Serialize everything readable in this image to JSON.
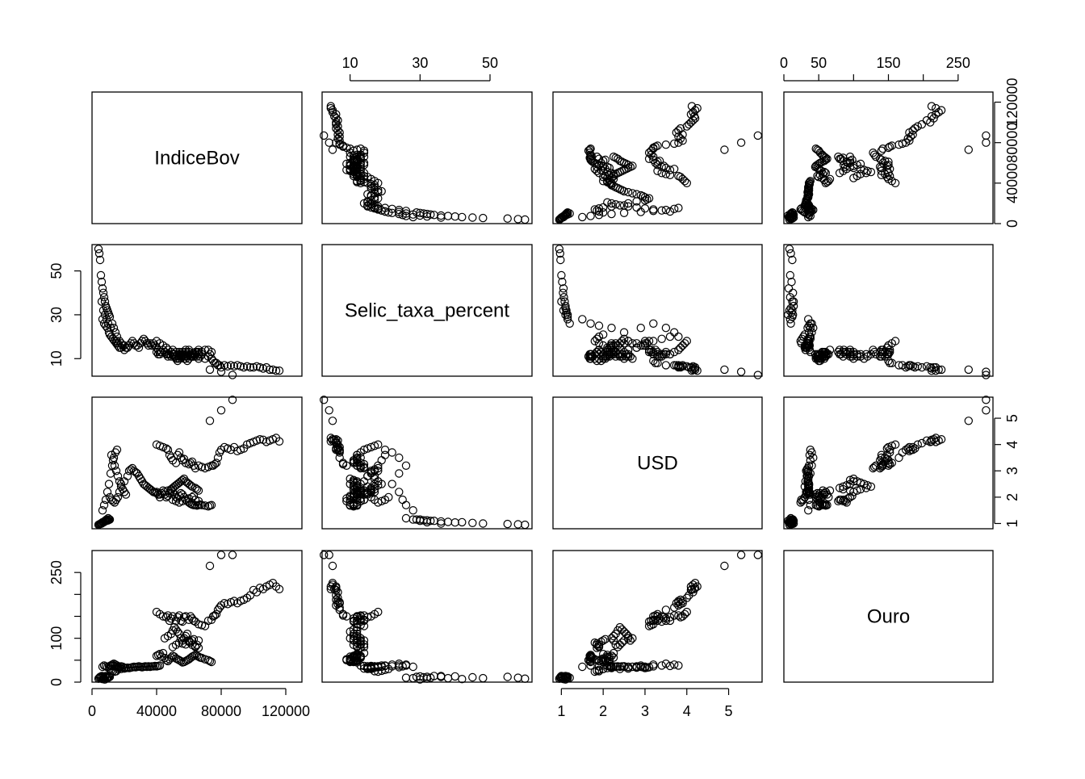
{
  "chart_data": {
    "type": "scatter",
    "kind": "scatterplot-matrix",
    "variables": [
      {
        "name": "IndiceBov",
        "range": [
          0,
          130000
        ],
        "ticks": [
          0,
          40000,
          80000,
          120000
        ],
        "tick_labels": [
          "0",
          "40000",
          "80000",
          "120000"
        ]
      },
      {
        "name": "Selic_taxa_percent",
        "range": [
          2,
          62
        ],
        "ticks": [
          10,
          30,
          50
        ],
        "tick_labels": [
          "10",
          "30",
          "50"
        ]
      },
      {
        "name": "USD",
        "range": [
          0.8,
          5.8
        ],
        "ticks": [
          1,
          2,
          3,
          4,
          5
        ],
        "tick_labels": [
          "1",
          "2",
          "3",
          "4",
          "5"
        ]
      },
      {
        "name": "Ouro",
        "range": [
          0,
          300
        ],
        "ticks": [
          0,
          100,
          250
        ],
        "minor_ticks": [
          50,
          150,
          200
        ],
        "tick_labels": [
          "0",
          "100",
          "250"
        ],
        "top_tick_labels": [
          "0",
          "50",
          "150",
          "250"
        ]
      }
    ],
    "axis_placement": {
      "IndiceBov": {
        "bottom": true,
        "right": true
      },
      "Selic_taxa_percent": {
        "top": true,
        "left": true
      },
      "USD": {
        "bottom": true,
        "right": true
      },
      "Ouro": {
        "top": true,
        "left": true
      }
    },
    "observations": [
      [
        4000,
        60,
        0.95,
        8
      ],
      [
        4500,
        58,
        0.97,
        10
      ],
      [
        5000,
        55,
        0.98,
        12
      ],
      [
        5500,
        48,
        1.0,
        9
      ],
      [
        6000,
        45,
        1.02,
        11
      ],
      [
        6500,
        42,
        1.05,
        7
      ],
      [
        7000,
        40,
        1.04,
        13
      ],
      [
        7500,
        38,
        1.06,
        9
      ],
      [
        8000,
        36,
        1.08,
        12
      ],
      [
        8500,
        34,
        1.1,
        14
      ],
      [
        9000,
        33,
        1.1,
        10
      ],
      [
        9500,
        32,
        1.12,
        12
      ],
      [
        10000,
        31,
        1.12,
        11
      ],
      [
        10500,
        30,
        1.15,
        13
      ],
      [
        11000,
        29,
        1.15,
        12
      ],
      [
        6000,
        36,
        1.0,
        14
      ],
      [
        7000,
        32,
        1.05,
        8
      ],
      [
        8000,
        30,
        1.1,
        6
      ],
      [
        9000,
        28,
        1.15,
        9
      ],
      [
        10000,
        26,
        1.2,
        10
      ],
      [
        6500,
        28,
        1.5,
        35
      ],
      [
        7500,
        26,
        1.7,
        38
      ],
      [
        8500,
        25,
        1.9,
        36
      ],
      [
        9500,
        24,
        2.2,
        34
      ],
      [
        10500,
        22,
        2.5,
        36
      ],
      [
        11500,
        24,
        2.9,
        38
      ],
      [
        12500,
        26,
        3.2,
        40
      ],
      [
        13500,
        24,
        3.5,
        42
      ],
      [
        14500,
        22,
        3.7,
        40
      ],
      [
        15500,
        20,
        3.8,
        38
      ],
      [
        12000,
        20,
        3.6,
        37
      ],
      [
        13000,
        19,
        3.4,
        38
      ],
      [
        14000,
        18,
        3.2,
        36
      ],
      [
        15000,
        18,
        3.0,
        35
      ],
      [
        16000,
        17,
        2.8,
        34
      ],
      [
        17000,
        18,
        2.6,
        35
      ],
      [
        18000,
        17,
        2.5,
        36
      ],
      [
        19000,
        16,
        2.3,
        35
      ],
      [
        20000,
        16,
        2.2,
        33
      ],
      [
        21000,
        15,
        2.1,
        32
      ],
      [
        11000,
        21,
        2.0,
        30
      ],
      [
        12000,
        20,
        1.9,
        28
      ],
      [
        13000,
        19,
        1.85,
        26
      ],
      [
        14000,
        18,
        1.8,
        24
      ],
      [
        15000,
        17,
        1.9,
        25
      ],
      [
        16000,
        16,
        2.0,
        30
      ],
      [
        17000,
        15,
        2.2,
        32
      ],
      [
        18000,
        15,
        2.4,
        30
      ],
      [
        20000,
        14,
        2.6,
        31
      ],
      [
        22000,
        15,
        2.8,
        33
      ],
      [
        23000,
        16,
        3.0,
        32
      ],
      [
        24000,
        17,
        3.05,
        33
      ],
      [
        25000,
        18,
        3.1,
        34
      ],
      [
        26000,
        17,
        3.0,
        35
      ],
      [
        27000,
        16,
        2.95,
        34
      ],
      [
        28000,
        16,
        2.9,
        35
      ],
      [
        29000,
        15,
        2.8,
        36
      ],
      [
        30000,
        17,
        2.7,
        35
      ],
      [
        31000,
        18,
        2.6,
        34
      ],
      [
        32000,
        19,
        2.5,
        35
      ],
      [
        33000,
        18,
        2.45,
        36
      ],
      [
        34000,
        17,
        2.4,
        35
      ],
      [
        35000,
        16,
        2.35,
        36
      ],
      [
        36000,
        17,
        2.3,
        35
      ],
      [
        37000,
        16,
        2.25,
        36
      ],
      [
        38000,
        17,
        2.2,
        36
      ],
      [
        39000,
        16,
        2.18,
        37
      ],
      [
        40000,
        15,
        2.15,
        36
      ],
      [
        41000,
        14,
        2.1,
        37
      ],
      [
        42000,
        13,
        2.1,
        38
      ],
      [
        40000,
        13,
        2.2,
        60
      ],
      [
        41000,
        12,
        2.1,
        62
      ],
      [
        42000,
        12,
        2.0,
        64
      ],
      [
        43000,
        13,
        2.15,
        58
      ],
      [
        44000,
        14,
        2.25,
        66
      ],
      [
        45000,
        13,
        2.1,
        55
      ],
      [
        46000,
        12,
        2.0,
        50
      ],
      [
        47000,
        11,
        2.05,
        48
      ],
      [
        48000,
        12,
        2.15,
        52
      ],
      [
        49000,
        13,
        2.25,
        56
      ],
      [
        50000,
        12,
        2.2,
        60
      ],
      [
        51000,
        11,
        2.1,
        58
      ],
      [
        52000,
        10,
        2.0,
        54
      ],
      [
        53000,
        9,
        1.95,
        52
      ],
      [
        54000,
        10,
        2.05,
        50
      ],
      [
        55000,
        11,
        2.15,
        48
      ],
      [
        56000,
        12,
        2.1,
        45
      ],
      [
        57000,
        11,
        2.0,
        46
      ],
      [
        58000,
        10,
        1.9,
        48
      ],
      [
        59000,
        9,
        1.85,
        50
      ],
      [
        60000,
        10,
        1.8,
        52
      ],
      [
        61000,
        11,
        1.75,
        55
      ],
      [
        62000,
        12,
        1.72,
        58
      ],
      [
        63000,
        11,
        1.7,
        60
      ],
      [
        64000,
        12,
        1.7,
        62
      ],
      [
        65000,
        11,
        1.68,
        60
      ],
      [
        66000,
        10,
        1.7,
        58
      ],
      [
        67000,
        11,
        1.72,
        56
      ],
      [
        68000,
        12,
        1.7,
        55
      ],
      [
        70000,
        10,
        1.68,
        52
      ],
      [
        72000,
        11,
        1.65,
        50
      ],
      [
        73000,
        12,
        1.68,
        48
      ],
      [
        74000,
        10,
        1.7,
        46
      ],
      [
        40000,
        18,
        4.0,
        160
      ],
      [
        42000,
        17,
        3.95,
        155
      ],
      [
        44000,
        16,
        3.9,
        150
      ],
      [
        46000,
        15,
        3.85,
        148
      ],
      [
        47000,
        14,
        3.8,
        152
      ],
      [
        48000,
        12,
        3.6,
        140
      ],
      [
        49000,
        13,
        3.5,
        145
      ],
      [
        50000,
        12,
        3.4,
        150
      ],
      [
        52000,
        11,
        3.3,
        140
      ],
      [
        53000,
        12,
        3.6,
        148
      ],
      [
        54000,
        13,
        3.7,
        152
      ],
      [
        55000,
        12,
        3.5,
        140
      ],
      [
        56000,
        11,
        3.4,
        138
      ],
      [
        57000,
        12,
        3.45,
        148
      ],
      [
        58000,
        13,
        3.3,
        150
      ],
      [
        60000,
        14,
        3.25,
        142
      ],
      [
        61000,
        12,
        3.3,
        150
      ],
      [
        62000,
        11,
        3.35,
        145
      ],
      [
        63000,
        12,
        3.2,
        140
      ],
      [
        64000,
        13,
        3.1,
        138
      ],
      [
        66000,
        12,
        3.2,
        132
      ],
      [
        68000,
        13,
        3.15,
        130
      ],
      [
        70000,
        14,
        3.1,
        128
      ],
      [
        72000,
        14,
        3.15,
        140
      ],
      [
        74000,
        13,
        3.2,
        142
      ],
      [
        45000,
        13,
        2.2,
        100
      ],
      [
        47000,
        12,
        2.25,
        105
      ],
      [
        49000,
        11,
        2.3,
        110
      ],
      [
        50000,
        12,
        2.35,
        118
      ],
      [
        51000,
        12,
        2.4,
        125
      ],
      [
        52000,
        11,
        2.45,
        120
      ],
      [
        53000,
        10,
        2.5,
        115
      ],
      [
        54000,
        11,
        2.55,
        110
      ],
      [
        55000,
        12,
        2.6,
        100
      ],
      [
        56000,
        11,
        2.65,
        95
      ],
      [
        57000,
        10,
        2.7,
        100
      ],
      [
        58000,
        11,
        2.6,
        105
      ],
      [
        59000,
        12,
        2.55,
        110
      ],
      [
        60000,
        13,
        2.5,
        95
      ],
      [
        61000,
        12,
        2.45,
        90
      ],
      [
        62000,
        11,
        2.4,
        85
      ],
      [
        64000,
        12,
        2.35,
        80
      ],
      [
        65000,
        13,
        2.3,
        85
      ],
      [
        66000,
        14,
        2.25,
        95
      ],
      [
        50000,
        14,
        1.9,
        80
      ],
      [
        52000,
        13,
        1.85,
        85
      ],
      [
        54000,
        12,
        1.8,
        90
      ],
      [
        56000,
        13,
        1.85,
        88
      ],
      [
        58000,
        14,
        1.9,
        86
      ],
      [
        60000,
        13,
        1.95,
        92
      ],
      [
        62000,
        12,
        2.0,
        95
      ],
      [
        63000,
        11,
        2.05,
        98
      ],
      [
        64000,
        12,
        1.9,
        82
      ],
      [
        66000,
        13,
        1.85,
        78
      ],
      [
        75000,
        9,
        3.2,
        150
      ],
      [
        76000,
        8,
        3.25,
        152
      ],
      [
        77000,
        8,
        3.3,
        155
      ],
      [
        78000,
        7,
        3.5,
        165
      ],
      [
        79000,
        7,
        3.7,
        170
      ],
      [
        80000,
        6,
        3.8,
        175
      ],
      [
        82000,
        7,
        3.9,
        180
      ],
      [
        84000,
        6.5,
        3.85,
        178
      ],
      [
        86000,
        7,
        3.8,
        182
      ],
      [
        88000,
        6.5,
        3.9,
        185
      ],
      [
        90000,
        7,
        3.75,
        180
      ],
      [
        92000,
        6.5,
        3.8,
        185
      ],
      [
        94000,
        6,
        3.85,
        188
      ],
      [
        96000,
        6.5,
        4.0,
        192
      ],
      [
        98000,
        6,
        4.05,
        198
      ],
      [
        100000,
        6,
        4.1,
        210
      ],
      [
        102000,
        6.5,
        4.15,
        205
      ],
      [
        104000,
        6,
        4.2,
        215
      ],
      [
        106000,
        5.5,
        4.18,
        212
      ],
      [
        108000,
        6,
        4.1,
        218
      ],
      [
        110000,
        5,
        4.15,
        222
      ],
      [
        112000,
        5,
        4.2,
        226
      ],
      [
        114000,
        4.5,
        4.25,
        218
      ],
      [
        116000,
        4.5,
        4.12,
        212
      ],
      [
        73000,
        5,
        4.9,
        265
      ],
      [
        80000,
        4,
        5.3,
        290
      ],
      [
        87000,
        2.5,
        5.7,
        290
      ]
    ]
  }
}
